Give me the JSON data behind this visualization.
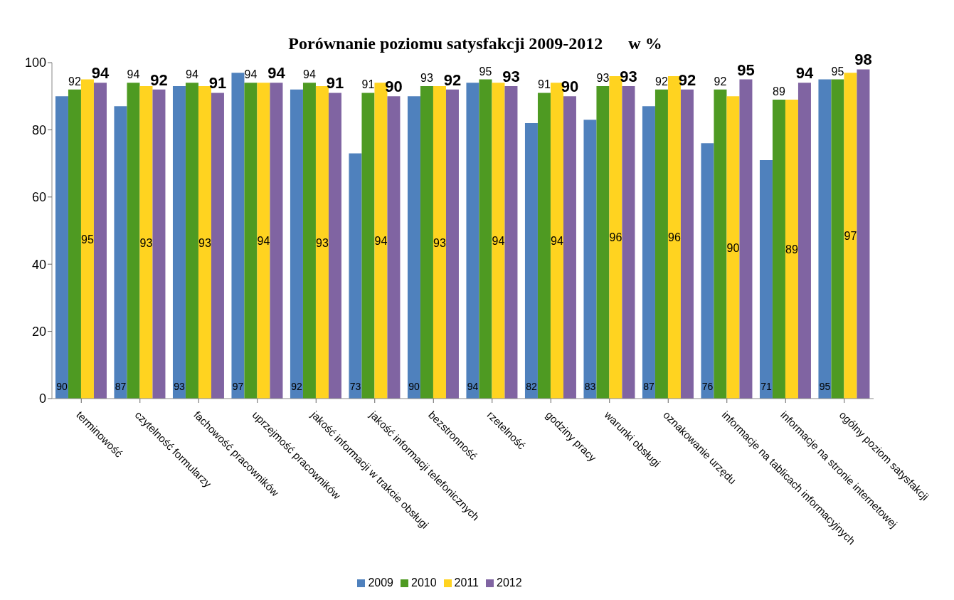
{
  "chart_data": {
    "type": "bar",
    "title": "Porównanie poziomu satysfakcji 2009-2012      w %",
    "categories": [
      "terminowość",
      "czytelność formularzy",
      "fachowość pracowników",
      "uprzejmość pracowników",
      "jakość informacji w trakcie obsługi",
      "jakość informacji telefonicznych",
      "bezstronność",
      "rzetelność",
      "godziny pracy",
      "warunki obsługi",
      "oznakowanie urzędu",
      "informacje na tablicach informacyjnych",
      "informacje na stronie internetowej",
      "ogólny poziom satysfakcji"
    ],
    "series": [
      {
        "name": "2009",
        "color": "#4f81bd",
        "values": [
          90,
          87,
          93,
          97,
          92,
          73,
          90,
          94,
          82,
          83,
          87,
          76,
          71,
          95
        ]
      },
      {
        "name": "2010",
        "color": "#4e9a22",
        "values": [
          92,
          94,
          94,
          94,
          94,
          91,
          93,
          95,
          91,
          93,
          92,
          92,
          89,
          95
        ]
      },
      {
        "name": "2011",
        "color": "#ffd320",
        "values": [
          95,
          93,
          93,
          94,
          93,
          94,
          93,
          94,
          94,
          96,
          96,
          90,
          89,
          97
        ]
      },
      {
        "name": "2012",
        "color": "#8064a2",
        "values": [
          94,
          92,
          91,
          94,
          91,
          90,
          92,
          93,
          90,
          93,
          92,
          95,
          94,
          98
        ]
      }
    ],
    "ylim": [
      0,
      100
    ],
    "yticks": [
      0,
      20,
      40,
      60,
      80,
      100
    ],
    "grid": false,
    "legend": "bottom",
    "data_labels": true
  }
}
